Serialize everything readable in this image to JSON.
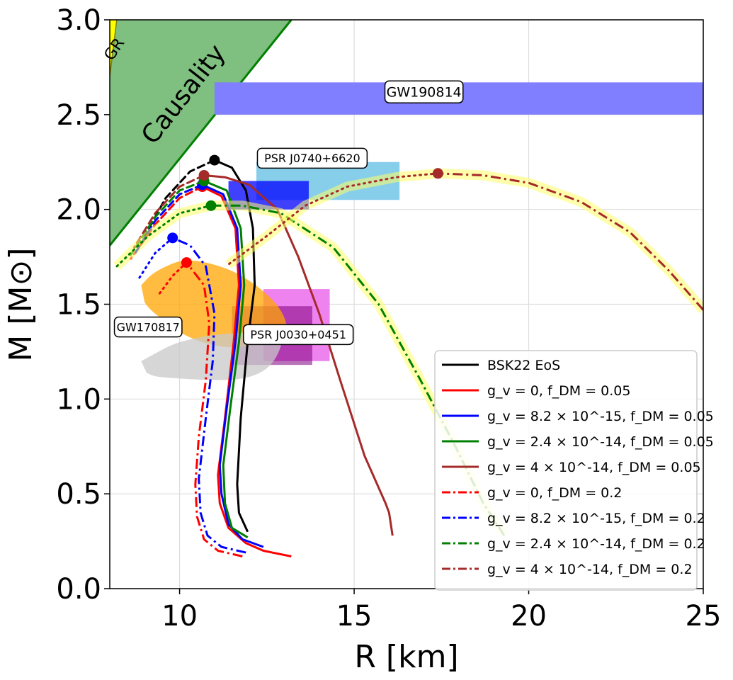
{
  "chart_data": {
    "type": "line",
    "title": "",
    "xlabel": "R [km]",
    "ylabel": "M [M⊙]",
    "xlim": [
      8,
      25
    ],
    "ylim": [
      0,
      3
    ],
    "grid": true,
    "x_ticks": [
      {
        "v": 10,
        "label": "10"
      },
      {
        "v": 15,
        "label": "15"
      },
      {
        "v": 20,
        "label": "20"
      },
      {
        "v": 25,
        "label": "25"
      }
    ],
    "y_ticks": [
      {
        "v": 0,
        "label": "0.0"
      },
      {
        "v": 0.5,
        "label": "0.5"
      },
      {
        "v": 1.0,
        "label": "1.0"
      },
      {
        "v": 1.5,
        "label": "1.5"
      },
      {
        "v": 2.0,
        "label": "2.0"
      },
      {
        "v": 2.5,
        "label": "2.5"
      },
      {
        "v": 3.0,
        "label": "3.0"
      }
    ],
    "regions": {
      "gr_label": "GR",
      "causality_label": "Causality",
      "gr_color": "#ffff00",
      "causality_color": "#7fbf7f",
      "causality_edge": "#008000"
    },
    "constraints": [
      {
        "name": "GW190814",
        "kind": "band",
        "r_min": 11.0,
        "r_max": 25.0,
        "m_min": 2.5,
        "m_max": 2.67,
        "color": "#7f7fff",
        "label_pos": [
          17.0,
          2.62
        ]
      },
      {
        "name": "PSR J0740+6620",
        "kind": "box",
        "r_min": 12.2,
        "r_max": 16.3,
        "m_min": 2.05,
        "m_max": 2.25,
        "color": "#87ceeb",
        "label_pos": [
          13.8,
          2.27
        ]
      },
      {
        "name": "PSR J0740+6620 inner",
        "kind": "box",
        "r_min": 11.4,
        "r_max": 13.7,
        "m_min": 2.0,
        "m_max": 2.15,
        "color": "#0000ff",
        "alpha": 0.75
      },
      {
        "name": "PSR J0030+0451",
        "kind": "box",
        "r_min": 12.4,
        "r_max": 14.3,
        "m_min": 1.2,
        "m_max": 1.58,
        "color": "#ee82ee",
        "label_pos": [
          13.4,
          1.34
        ]
      },
      {
        "name": "PSR J0030+0451 inner",
        "kind": "box",
        "r_min": 11.5,
        "r_max": 13.8,
        "m_min": 1.18,
        "m_max": 1.49,
        "color": "#800080",
        "alpha": 0.55
      },
      {
        "name": "GW170817",
        "kind": "blob",
        "color": "#ffa500",
        "label_pos": [
          9.1,
          1.38
        ],
        "upper": [
          [
            8.9,
            1.6
          ],
          [
            9.2,
            1.66
          ],
          [
            9.6,
            1.7
          ],
          [
            10.0,
            1.73
          ],
          [
            10.5,
            1.73
          ],
          [
            11.0,
            1.71
          ],
          [
            11.6,
            1.67
          ],
          [
            12.2,
            1.6
          ],
          [
            12.7,
            1.52
          ],
          [
            13.0,
            1.44
          ],
          [
            13.1,
            1.36
          ]
        ],
        "lower": [
          [
            13.1,
            1.36
          ],
          [
            12.6,
            1.31
          ],
          [
            12.0,
            1.28
          ],
          [
            11.3,
            1.27
          ],
          [
            10.6,
            1.3
          ],
          [
            10.0,
            1.35
          ],
          [
            9.5,
            1.42
          ],
          [
            9.1,
            1.48
          ],
          [
            8.9,
            1.54
          ]
        ]
      },
      {
        "name": "GW170817 low",
        "kind": "blob",
        "color": "#c8c8c8",
        "upper": [
          [
            8.9,
            1.2
          ],
          [
            9.3,
            1.24
          ],
          [
            9.8,
            1.29
          ],
          [
            10.4,
            1.32
          ],
          [
            11.0,
            1.34
          ],
          [
            11.8,
            1.35
          ],
          [
            12.6,
            1.36
          ],
          [
            13.0,
            1.34
          ]
        ],
        "lower": [
          [
            13.0,
            1.34
          ],
          [
            12.8,
            1.22
          ],
          [
            12.4,
            1.14
          ],
          [
            11.7,
            1.1
          ],
          [
            10.8,
            1.1
          ],
          [
            9.8,
            1.11
          ],
          [
            9.2,
            1.12
          ],
          [
            8.9,
            1.16
          ]
        ]
      }
    ],
    "series": [
      {
        "name": "BSK22  EoS",
        "color": "#000000",
        "style": "solid",
        "peak": [
          11.0,
          2.26
        ],
        "points": [
          [
            11.95,
            0.3
          ],
          [
            11.7,
            0.4
          ],
          [
            11.65,
            0.55
          ],
          [
            11.75,
            0.9
          ],
          [
            11.95,
            1.3
          ],
          [
            12.15,
            1.6
          ],
          [
            12.1,
            1.9
          ],
          [
            11.9,
            2.1
          ],
          [
            11.5,
            2.22
          ],
          [
            11.0,
            2.26
          ]
        ],
        "unstable": [
          [
            11.0,
            2.26
          ],
          [
            10.3,
            2.2
          ],
          [
            9.6,
            2.06
          ],
          [
            9.0,
            1.86
          ]
        ]
      },
      {
        "name": "g_v=0, f_DM=0.05",
        "color": "#ff0000",
        "style": "solid",
        "peak": [
          10.65,
          2.12
        ],
        "points": [
          [
            13.2,
            0.17
          ],
          [
            12.4,
            0.2
          ],
          [
            11.9,
            0.24
          ],
          [
            11.4,
            0.32
          ],
          [
            11.15,
            0.45
          ],
          [
            11.1,
            0.6
          ],
          [
            11.3,
            0.9
          ],
          [
            11.55,
            1.3
          ],
          [
            11.7,
            1.6
          ],
          [
            11.6,
            1.9
          ],
          [
            11.2,
            2.07
          ],
          [
            10.65,
            2.12
          ]
        ],
        "unstable": [
          [
            10.65,
            2.12
          ],
          [
            10.0,
            2.06
          ],
          [
            9.3,
            1.92
          ],
          [
            8.6,
            1.74
          ]
        ]
      },
      {
        "name": "g_v=8.2e-15, f_DM=0.05",
        "color": "#0000ff",
        "style": "solid",
        "peak": [
          10.65,
          2.13
        ],
        "points": [
          [
            12.4,
            0.22
          ],
          [
            11.8,
            0.26
          ],
          [
            11.4,
            0.34
          ],
          [
            11.2,
            0.5
          ],
          [
            11.15,
            0.65
          ],
          [
            11.35,
            0.95
          ],
          [
            11.6,
            1.3
          ],
          [
            11.75,
            1.6
          ],
          [
            11.65,
            1.9
          ],
          [
            11.25,
            2.08
          ],
          [
            10.65,
            2.13
          ]
        ],
        "unstable": [
          [
            10.65,
            2.13
          ],
          [
            10.0,
            2.08
          ],
          [
            9.3,
            1.94
          ],
          [
            8.7,
            1.76
          ]
        ]
      },
      {
        "name": "g_v=2.4e-14, f_DM=0.05",
        "color": "#008000",
        "style": "solid",
        "peak": [
          10.7,
          2.15
        ],
        "points": [
          [
            11.95,
            0.27
          ],
          [
            11.5,
            0.32
          ],
          [
            11.3,
            0.45
          ],
          [
            11.25,
            0.65
          ],
          [
            11.45,
            0.95
          ],
          [
            11.7,
            1.3
          ],
          [
            11.85,
            1.6
          ],
          [
            11.75,
            1.9
          ],
          [
            11.35,
            2.1
          ],
          [
            10.7,
            2.15
          ]
        ],
        "unstable": [
          [
            10.7,
            2.15
          ],
          [
            10.0,
            2.1
          ],
          [
            9.3,
            1.96
          ],
          [
            8.6,
            1.76
          ]
        ]
      },
      {
        "name": "g_v=4e-14, f_DM=0.05",
        "color": "#a52a2a",
        "style": "solid",
        "peak": [
          10.7,
          2.18
        ],
        "points": [
          [
            16.1,
            0.28
          ],
          [
            16.0,
            0.4
          ],
          [
            15.9,
            0.45
          ],
          [
            15.3,
            0.7
          ],
          [
            14.6,
            1.1
          ],
          [
            14.0,
            1.45
          ],
          [
            13.4,
            1.75
          ],
          [
            12.8,
            2.0
          ],
          [
            12.0,
            2.13
          ],
          [
            11.3,
            2.17
          ],
          [
            10.7,
            2.18
          ]
        ],
        "unstable": [
          [
            10.7,
            2.18
          ],
          [
            10.0,
            2.12
          ],
          [
            9.3,
            1.98
          ],
          [
            8.7,
            1.8
          ]
        ]
      },
      {
        "name": "g_v=0, f_DM=0.2",
        "color": "#ff0000",
        "style": "dashdot",
        "peak": [
          10.2,
          1.72
        ],
        "points": [
          [
            11.8,
            0.17
          ],
          [
            11.1,
            0.2
          ],
          [
            10.7,
            0.26
          ],
          [
            10.5,
            0.38
          ],
          [
            10.45,
            0.55
          ],
          [
            10.55,
            0.8
          ],
          [
            10.75,
            1.1
          ],
          [
            10.85,
            1.4
          ],
          [
            10.7,
            1.6
          ],
          [
            10.2,
            1.72
          ]
        ],
        "unstable": [
          [
            10.2,
            1.72
          ],
          [
            9.8,
            1.65
          ],
          [
            9.4,
            1.55
          ]
        ]
      },
      {
        "name": "g_v=8.2e-15, f_DM=0.2",
        "color": "#0000ff",
        "style": "dashdot",
        "peak": [
          9.8,
          1.85
        ],
        "points": [
          [
            11.9,
            0.19
          ],
          [
            11.2,
            0.22
          ],
          [
            10.8,
            0.28
          ],
          [
            10.6,
            0.4
          ],
          [
            10.55,
            0.58
          ],
          [
            10.75,
            0.9
          ],
          [
            10.95,
            1.2
          ],
          [
            11.0,
            1.45
          ],
          [
            10.75,
            1.7
          ],
          [
            10.3,
            1.81
          ],
          [
            9.8,
            1.85
          ]
        ],
        "unstable": [
          [
            9.8,
            1.85
          ],
          [
            9.3,
            1.77
          ],
          [
            8.85,
            1.64
          ]
        ]
      },
      {
        "name": "g_v=2.4e-14, f_DM=0.2",
        "color": "#008000",
        "style": "dashdot",
        "peak": [
          10.9,
          2.02
        ],
        "points": [
          [
            19.3,
            0.28
          ],
          [
            18.7,
            0.45
          ],
          [
            17.9,
            0.75
          ],
          [
            16.9,
            1.1
          ],
          [
            15.7,
            1.5
          ],
          [
            14.4,
            1.8
          ],
          [
            12.9,
            1.98
          ],
          [
            11.8,
            2.02
          ],
          [
            10.9,
            2.02
          ]
        ],
        "unstable": [
          [
            10.9,
            2.02
          ],
          [
            10.0,
            1.98
          ],
          [
            9.1,
            1.86
          ],
          [
            8.2,
            1.7
          ]
        ]
      },
      {
        "name": "g_v=4e-14, f_DM=0.2",
        "color": "#a52a2a",
        "style": "dashdot",
        "peak": [
          17.4,
          2.19
        ],
        "points": [
          [
            25.0,
            1.47
          ],
          [
            24.0,
            1.68
          ],
          [
            22.9,
            1.88
          ],
          [
            21.5,
            2.04
          ],
          [
            20.0,
            2.14
          ],
          [
            18.7,
            2.18
          ],
          [
            17.4,
            2.19
          ]
        ],
        "unstable": [
          [
            17.4,
            2.19
          ],
          [
            16.2,
            2.17
          ],
          [
            14.8,
            2.12
          ],
          [
            13.6,
            2.02
          ],
          [
            12.5,
            1.86
          ],
          [
            11.4,
            1.71
          ]
        ]
      }
    ],
    "legend": {
      "placement": "lower-right",
      "entries": [
        {
          "label": "BSK22  EoS",
          "color": "#000000",
          "style": "solid"
        },
        {
          "label": "g_v = 0, f_DM = 0.05",
          "color": "#ff0000",
          "style": "solid"
        },
        {
          "label": "g_v = 8.2 × 10^-15, f_DM = 0.05",
          "color": "#0000ff",
          "style": "solid"
        },
        {
          "label": "g_v = 2.4 × 10^-14, f_DM = 0.05",
          "color": "#008000",
          "style": "solid"
        },
        {
          "label": "g_v = 4 × 10^-14, f_DM = 0.05",
          "color": "#a52a2a",
          "style": "solid"
        },
        {
          "label": "g_v = 0, f_DM = 0.2",
          "color": "#ff0000",
          "style": "dashdot"
        },
        {
          "label": "g_v = 8.2 × 10^-15, f_DM = 0.2",
          "color": "#0000ff",
          "style": "dashdot"
        },
        {
          "label": "g_v = 2.4 × 10^-14, f_DM = 0.2",
          "color": "#008000",
          "style": "dashdot"
        },
        {
          "label": "g_v = 4 × 10^-14, f_DM = 0.2",
          "color": "#a52a2a",
          "style": "dashdot"
        }
      ]
    }
  }
}
